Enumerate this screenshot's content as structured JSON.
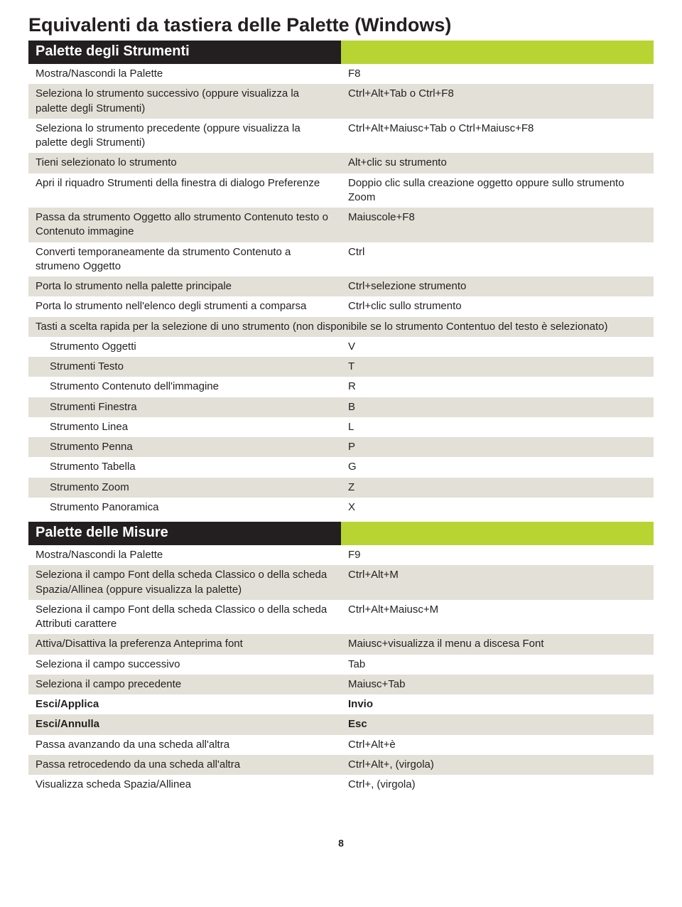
{
  "title": "Equivalenti da tastiera delle Palette (Windows)",
  "page_number": "8",
  "colors": {
    "header_dark": "#231f20",
    "header_accent": "#b8d433",
    "row_alt": "#e3e0d7",
    "text": "#231f20"
  },
  "section1": {
    "title": "Palette degli Strumenti",
    "rows": [
      {
        "l": "Mostra/Nascondi la Palette",
        "r": "F8",
        "alt": false
      },
      {
        "l": "Seleziona lo strumento successivo (oppure visualizza la palette degli Strumenti)",
        "r": "Ctrl+Alt+Tab o Ctrl+F8",
        "alt": true
      },
      {
        "l": "Seleziona lo strumento precedente (oppure visualizza la palette degli Strumenti)",
        "r": "Ctrl+Alt+Maiusc+Tab o Ctrl+Maiusc+F8",
        "alt": false
      },
      {
        "l": "Tieni selezionato lo strumento",
        "r": "Alt+clic su strumento",
        "alt": true
      },
      {
        "l": "Apri il riquadro Strumenti della finestra di dialogo Preferenze",
        "r": "Doppio clic sulla creazione oggetto oppure sullo strumento Zoom",
        "alt": false
      },
      {
        "l": "Passa da strumento Oggetto allo strumento Contenuto testo o Contenuto immagine",
        "r": "Maiuscole+F8",
        "alt": true
      },
      {
        "l": "Converti temporaneamente da strumento Contenuto a strumeno Oggetto",
        "r": "Ctrl",
        "alt": false
      },
      {
        "l": "Porta lo strumento nella palette principale",
        "r": "Ctrl+selezione strumento",
        "alt": true
      },
      {
        "l": "Porta lo strumento nell'elenco degli strumenti a comparsa",
        "r": "Ctrl+clic sullo strumento",
        "alt": false
      }
    ],
    "sub_header": "Tasti a scelta rapida per la selezione di uno strumento (non disponibile se lo strumento Contentuo del testo è selezionato)",
    "sub_rows": [
      {
        "l": "Strumento Oggetti",
        "r": "V",
        "alt": false
      },
      {
        "l": "Strumenti Testo",
        "r": "T",
        "alt": true
      },
      {
        "l": "Strumento Contenuto dell'immagine",
        "r": "R",
        "alt": false
      },
      {
        "l": "Strumenti Finestra",
        "r": "B",
        "alt": true
      },
      {
        "l": "Strumento Linea",
        "r": "L",
        "alt": false
      },
      {
        "l": "Strumento Penna",
        "r": "P",
        "alt": true
      },
      {
        "l": "Strumento Tabella",
        "r": "G",
        "alt": false
      },
      {
        "l": "Strumento Zoom",
        "r": "Z",
        "alt": true
      },
      {
        "l": "Strumento Panoramica",
        "r": "X",
        "alt": false
      }
    ]
  },
  "section2": {
    "title": "Palette delle Misure",
    "rows": [
      {
        "l": "Mostra/Nascondi la Palette",
        "r": "F9",
        "alt": false,
        "bold": false
      },
      {
        "l": "Seleziona il campo Font della scheda Classico o della scheda Spazia/Allinea (oppure visualizza la palette)",
        "r": "Ctrl+Alt+M",
        "alt": true,
        "bold": false
      },
      {
        "l": "Seleziona il campo Font della scheda Classico o della scheda Attributi carattere",
        "r": "Ctrl+Alt+Maiusc+M",
        "alt": false,
        "bold": false
      },
      {
        "l": "Attiva/Disattiva la preferenza Anteprima font",
        "r": "Maiusc+visualizza il menu a discesa Font",
        "alt": true,
        "bold": false
      },
      {
        "l": "Seleziona il campo successivo",
        "r": "Tab",
        "alt": false,
        "bold": false
      },
      {
        "l": "Seleziona il campo precedente",
        "r": "Maiusc+Tab",
        "alt": true,
        "bold": false
      },
      {
        "l": "Esci/Applica",
        "r": "Invio",
        "alt": false,
        "bold": true
      },
      {
        "l": "Esci/Annulla",
        "r": "Esc",
        "alt": true,
        "bold": true
      },
      {
        "l": "Passa avanzando da una scheda all'altra",
        "r": "Ctrl+Alt+è",
        "alt": false,
        "bold": false
      },
      {
        "l": "Passa retrocedendo da una scheda all'altra",
        "r": "Ctrl+Alt+, (virgola)",
        "alt": true,
        "bold": false
      },
      {
        "l": "Visualizza scheda Spazia/Allinea",
        "r": "Ctrl+, (virgola)",
        "alt": false,
        "bold": false
      }
    ]
  }
}
